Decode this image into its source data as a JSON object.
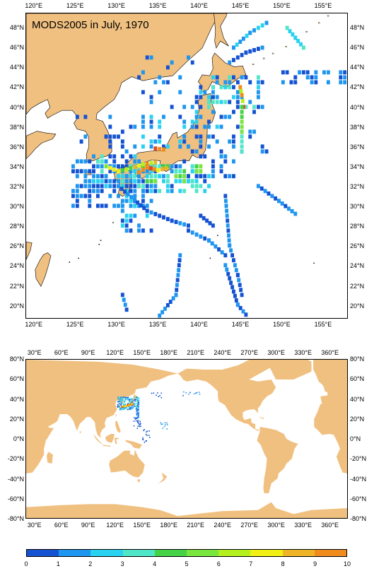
{
  "title": "MODS2005 in July, 1970",
  "top_map": {
    "lon_ticks": [
      "120°E",
      "125°E",
      "130°E",
      "135°E",
      "140°E",
      "145°E",
      "150°E",
      "155°E"
    ],
    "lat_ticks": [
      "48°N",
      "46°N",
      "44°N",
      "42°N",
      "40°N",
      "38°N",
      "36°N",
      "34°N",
      "32°N",
      "30°N",
      "28°N",
      "26°N",
      "24°N",
      "22°N",
      "20°N"
    ],
    "lon_range": [
      119,
      158
    ],
    "lat_range": [
      18.7,
      49.5
    ]
  },
  "bottom_map": {
    "lon_ticks": [
      "30°E",
      "60°E",
      "90°E",
      "120°E",
      "150°E",
      "180°E",
      "210°E",
      "240°E",
      "270°E",
      "300°E",
      "330°E",
      "360°E"
    ],
    "lat_ticks": [
      "80°N",
      "60°N",
      "40°N",
      "20°N",
      "0°N",
      "-20°N",
      "-40°N",
      "-60°N",
      "-80°N"
    ],
    "lon_range": [
      20,
      380
    ],
    "lat_range": [
      -80,
      80
    ]
  },
  "colorbar": {
    "labels": [
      "0",
      "1",
      "2",
      "3",
      "4",
      "5",
      "6",
      "7",
      "8",
      "9",
      "10"
    ],
    "colors": [
      "#1452d2",
      "#1e96f0",
      "#28d2f0",
      "#50e6c8",
      "#46d246",
      "#78e63c",
      "#b4f01e",
      "#f0f014",
      "#f0b428",
      "#f08c1e",
      "#e6461e"
    ]
  },
  "colors": {
    "land": "#f0c080",
    "ocean": "#ffffff"
  }
}
